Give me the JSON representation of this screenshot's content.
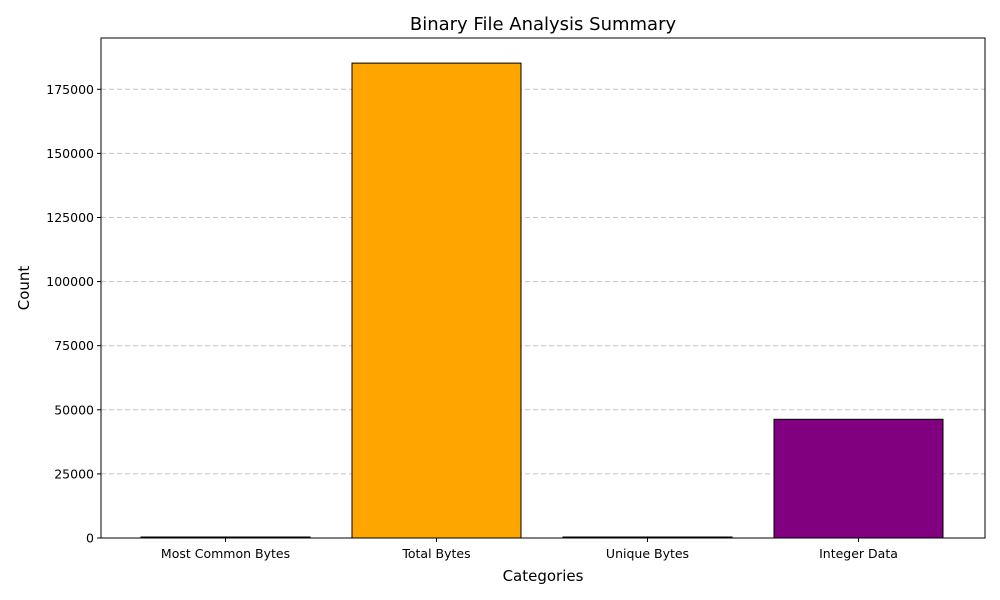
{
  "chart_data": {
    "type": "bar",
    "title": "Binary File Analysis Summary",
    "xlabel": "Categories",
    "ylabel": "Count",
    "categories": [
      "Most Common Bytes",
      "Total Bytes",
      "Unique Bytes",
      "Integer Data"
    ],
    "values": [
      256,
      185210,
      256,
      46302
    ],
    "colors": [
      "#1f77b4",
      "#ffa500",
      "#2ca02c",
      "#800080"
    ],
    "edge_color": "#000000",
    "ylim": [
      0,
      195000
    ],
    "yticks": [
      0,
      25000,
      50000,
      75000,
      100000,
      125000,
      150000,
      175000
    ],
    "ytick_labels": [
      "0",
      "25000",
      "50000",
      "75000",
      "100000",
      "125000",
      "150000",
      "175000"
    ],
    "grid": "y-dashed"
  }
}
